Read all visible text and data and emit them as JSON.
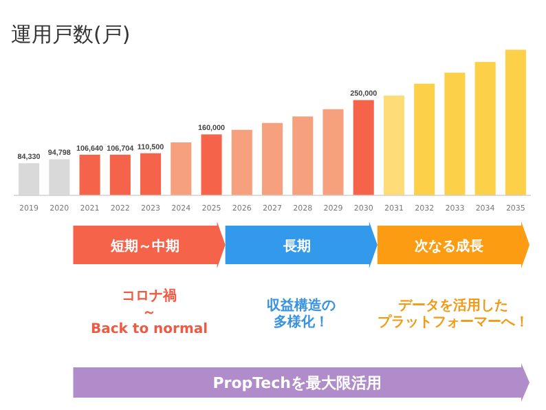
{
  "chart_data": {
    "type": "bar",
    "title": "運用戸数(戸)",
    "categories": [
      "2019",
      "2020",
      "2021",
      "2022",
      "2023",
      "2024",
      "2025",
      "2026",
      "2027",
      "2028",
      "2029",
      "2030",
      "2031",
      "2032",
      "2033",
      "2034",
      "2035"
    ],
    "values": [
      84330,
      94798,
      106640,
      106704,
      110500,
      139000,
      160000,
      172000,
      190000,
      207000,
      226000,
      250000,
      262000,
      293000,
      322000,
      350000,
      382000
    ],
    "value_labels": [
      "84,330",
      "94,798",
      "106,640",
      "106,704",
      "110,500",
      null,
      "160,000",
      null,
      null,
      null,
      null,
      "250,000",
      null,
      null,
      null,
      null,
      null
    ],
    "colors": [
      "#d9d9d9",
      "#d9d9d9",
      "#f4634a",
      "#f4634a",
      "#f4634a",
      "#f7a07e",
      "#f4634a",
      "#f7a07e",
      "#f7a07e",
      "#f7a07e",
      "#f7a07e",
      "#f4634a",
      "#fedc78",
      "#fdd04a",
      "#fdd04a",
      "#fdd04a",
      "#fdd04a"
    ],
    "tick_labels": "x",
    "annotations": [
      "短期～中期",
      "長期",
      "次なる成長",
      "コロナ禍",
      "～",
      "Back to normal",
      "収益構造の",
      "多様化！",
      "データを活用した",
      "プラットフォーマーへ！",
      "PropTechを最大限活用"
    ]
  }
}
